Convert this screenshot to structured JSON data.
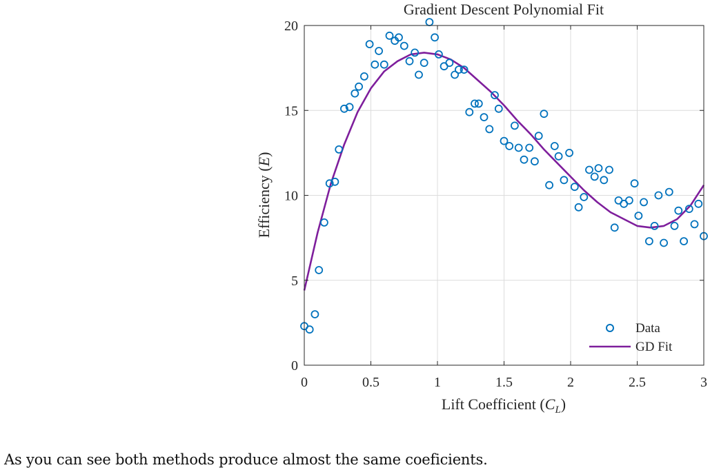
{
  "chart_data": {
    "type": "scatter",
    "title": "Gradient Descent Polynomial Fit",
    "xlabel": "Lift Coefficient (C_L)",
    "ylabel": "Efficiency (E)",
    "xlim": [
      0,
      3
    ],
    "ylim": [
      0,
      20
    ],
    "xticks": [
      "0",
      "0.5",
      "1",
      "1.5",
      "2",
      "2.5",
      "3"
    ],
    "yticks": [
      "0",
      "5",
      "10",
      "15",
      "20"
    ],
    "grid": true,
    "legend_position": "bottom-right",
    "series": [
      {
        "name": "Data",
        "kind": "markers",
        "color": "#0072BD",
        "x": [
          0.0,
          0.04,
          0.08,
          0.11,
          0.15,
          0.19,
          0.23,
          0.26,
          0.3,
          0.34,
          0.38,
          0.41,
          0.45,
          0.49,
          0.53,
          0.56,
          0.6,
          0.64,
          0.68,
          0.71,
          0.75,
          0.79,
          0.83,
          0.86,
          0.9,
          0.94,
          0.98,
          1.01,
          1.05,
          1.09,
          1.13,
          1.16,
          1.2,
          1.24,
          1.28,
          1.31,
          1.35,
          1.39,
          1.43,
          1.46,
          1.5,
          1.54,
          1.58,
          1.61,
          1.65,
          1.69,
          1.73,
          1.76,
          1.8,
          1.84,
          1.88,
          1.91,
          1.95,
          1.99,
          2.03,
          2.06,
          2.1,
          2.14,
          2.18,
          2.21,
          2.25,
          2.29,
          2.33,
          2.36,
          2.4,
          2.44,
          2.48,
          2.51,
          2.55,
          2.59,
          2.63,
          2.66,
          2.7,
          2.74,
          2.78,
          2.81,
          2.85,
          2.89,
          2.93,
          2.96,
          3.0
        ],
        "y": [
          2.3,
          2.1,
          3.0,
          5.6,
          8.4,
          10.7,
          10.8,
          12.7,
          15.1,
          15.2,
          16.0,
          16.4,
          17.0,
          18.9,
          17.7,
          18.5,
          17.7,
          19.4,
          19.1,
          19.3,
          18.8,
          17.9,
          18.4,
          17.1,
          17.8,
          20.2,
          19.3,
          18.3,
          17.6,
          17.8,
          17.1,
          17.4,
          17.4,
          14.9,
          15.4,
          15.4,
          14.6,
          13.9,
          15.9,
          15.1,
          13.2,
          12.9,
          14.1,
          12.8,
          12.1,
          12.8,
          12.0,
          13.5,
          14.8,
          10.6,
          12.9,
          12.3,
          10.9,
          12.5,
          10.5,
          9.3,
          9.9,
          11.5,
          11.1,
          11.6,
          10.9,
          11.5,
          8.1,
          9.7,
          9.5,
          9.7,
          10.7,
          8.8,
          9.6,
          7.3,
          8.2,
          10.0,
          7.2,
          10.2,
          8.2,
          9.1,
          7.3,
          9.2,
          8.3,
          9.5,
          7.6
        ]
      },
      {
        "name": "GD Fit",
        "kind": "line",
        "color": "#7E1E9C",
        "x": [
          0.0,
          0.1,
          0.2,
          0.3,
          0.4,
          0.5,
          0.6,
          0.7,
          0.8,
          0.9,
          1.0,
          1.1,
          1.2,
          1.3,
          1.4,
          1.5,
          1.6,
          1.7,
          1.8,
          1.9,
          2.0,
          2.1,
          2.2,
          2.3,
          2.4,
          2.5,
          2.6,
          2.7,
          2.8,
          2.9,
          3.0
        ],
        "y": [
          4.4,
          7.8,
          10.7,
          13.0,
          14.9,
          16.3,
          17.3,
          17.9,
          18.3,
          18.4,
          18.3,
          18.0,
          17.5,
          16.8,
          16.1,
          15.3,
          14.4,
          13.6,
          12.7,
          11.9,
          11.1,
          10.3,
          9.6,
          9.0,
          8.6,
          8.2,
          8.1,
          8.2,
          8.6,
          9.4,
          10.6
        ]
      }
    ]
  },
  "caption": "As you can see both methods produce almost the same coeficients."
}
